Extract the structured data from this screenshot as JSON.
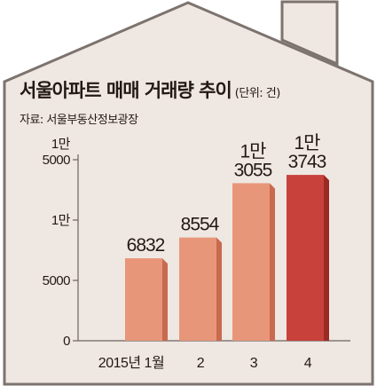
{
  "header": {
    "title": "서울아파트 매매 거래량 추이",
    "unit": "(단위: 건)",
    "source": "자료: 서울부동산정보광장"
  },
  "colors": {
    "house_fill": "#efe7e2",
    "house_stroke": "#7d736e",
    "bar_light": "#e8967a",
    "bar_light_side": "#c86a4e",
    "bar_dark": "#c8413a",
    "bar_dark_side": "#9a2a24",
    "text": "#231815"
  },
  "chart_data": {
    "type": "bar",
    "title": "서울아파트 매매 거래량 추이",
    "unit": "(단위: 건)",
    "source": "자료: 서울부동산정보광장",
    "categories": [
      "2015년 1월",
      "2",
      "3",
      "4"
    ],
    "values": [
      6832,
      8554,
      13055,
      13743
    ],
    "value_labels": [
      [
        "6832"
      ],
      [
        "8554"
      ],
      [
        "1만",
        "3055"
      ],
      [
        "1만",
        "3743"
      ]
    ],
    "ylim": [
      0,
      15000
    ],
    "yticks": [
      {
        "value": 0,
        "lines": [
          "0"
        ]
      },
      {
        "value": 5000,
        "lines": [
          "5000"
        ]
      },
      {
        "value": 10000,
        "lines": [
          "1만"
        ]
      },
      {
        "value": 15000,
        "lines": [
          "1만",
          "5000"
        ]
      }
    ],
    "highlight_index": 3,
    "grid": false
  }
}
